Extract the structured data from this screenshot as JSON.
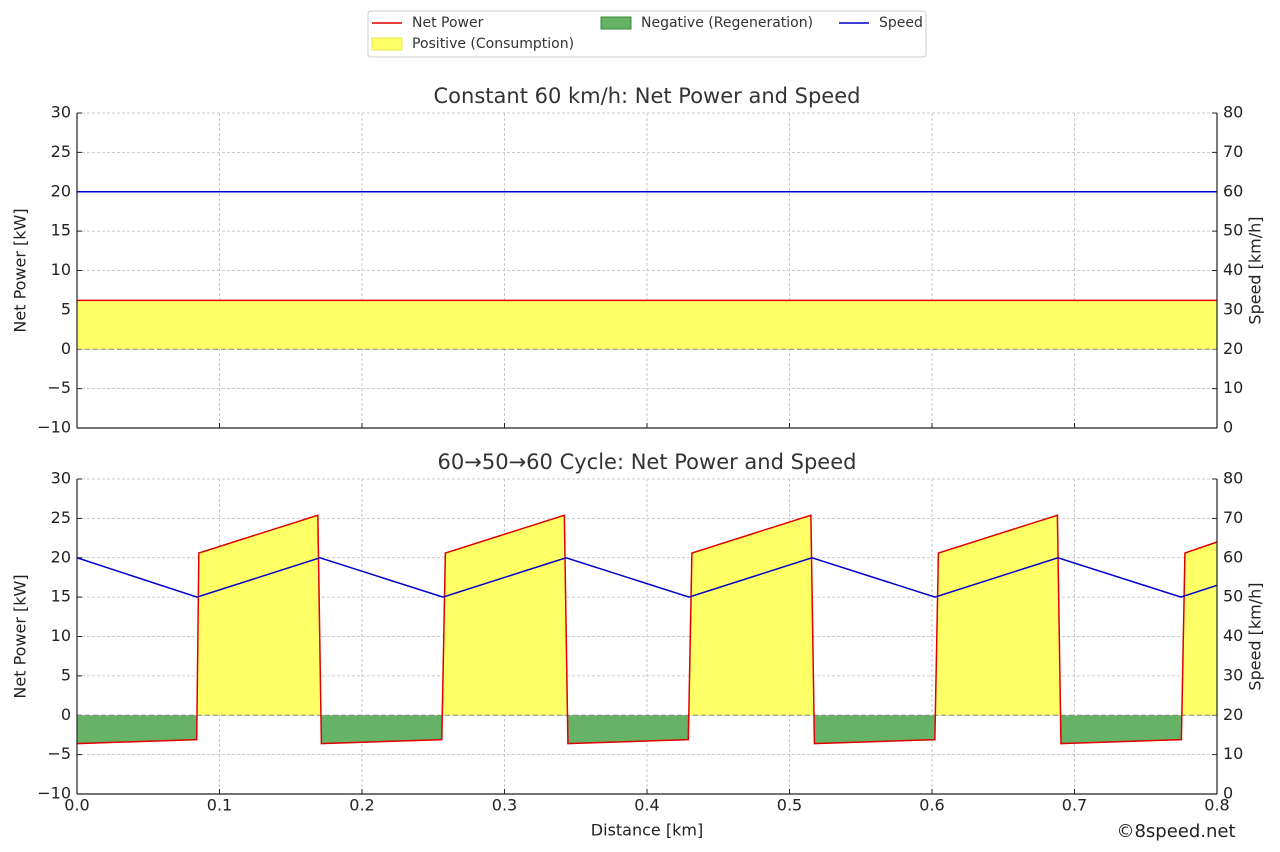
{
  "watermark": "©8speed.net",
  "chart_data": [
    {
      "type": "line",
      "title": "Constant 60 km/h: Net Power and Speed",
      "ylabel": "Net Power [kW]",
      "y2label": "Speed [km/h]",
      "xlim": [
        0,
        0.8
      ],
      "xticks": [
        0,
        0.1,
        0.2,
        0.3,
        0.4,
        0.5,
        0.6,
        0.7,
        0.8
      ],
      "xtick_labels": false,
      "ylim": [
        -10,
        30
      ],
      "yticks": [
        {
          "value": -10,
          "label": "−10"
        },
        {
          "value": -5,
          "label": "−5"
        },
        0,
        5,
        10,
        15,
        20,
        25,
        30
      ],
      "y2lim": [
        0,
        80
      ],
      "y2ticks": [
        0,
        10,
        20,
        30,
        40,
        50,
        60,
        70,
        80
      ],
      "grid": true,
      "zero_line": true,
      "fills": [
        {
          "name": "Positive (Consumption)",
          "color": "#ffff66",
          "series": 0
        },
        {
          "name": "Negative (Regeneration)",
          "color": "#66b266",
          "series": 0
        }
      ],
      "series": [
        {
          "name": "Net Power",
          "color": "#e00000",
          "x": [
            0,
            0.8
          ],
          "values": [
            6.2,
            6.2
          ]
        },
        {
          "name": "Speed",
          "color": "#0000cc",
          "axis": "y2",
          "x": [
            0,
            0.8
          ],
          "values": [
            60,
            60
          ]
        }
      ]
    },
    {
      "type": "line",
      "title": "60→50→60 Cycle: Net Power and Speed",
      "ylabel": "Net Power [kW]",
      "y2label": "Speed [km/h]",
      "xlabel": "Distance [km]",
      "xlim": [
        0,
        0.8
      ],
      "xticks": [
        {
          "value": 0,
          "label": "0.0"
        },
        0.1,
        0.2,
        0.3,
        0.4,
        0.5,
        0.6,
        0.7,
        0.8
      ],
      "xtick_labels": true,
      "ylim": [
        -10,
        30
      ],
      "yticks": [
        {
          "value": -10,
          "label": "−10"
        },
        {
          "value": -5,
          "label": "−5"
        },
        0,
        5,
        10,
        15,
        20,
        25,
        30
      ],
      "y2lim": [
        0,
        80
      ],
      "y2ticks": [
        0,
        10,
        20,
        30,
        40,
        50,
        60,
        70,
        80
      ],
      "grid": true,
      "zero_line": true,
      "fills": [
        {
          "color": "#ffff66",
          "series": 0
        },
        {
          "color": "#66b266",
          "series": 0
        }
      ],
      "series": [
        {
          "color": "#e00000",
          "x": [
            0,
            0.084,
            0.0855,
            0.169,
            0.1715,
            0.256,
            0.2585,
            0.342,
            0.3445,
            0.429,
            0.4315,
            0.515,
            0.5175,
            0.602,
            0.6045,
            0.688,
            0.6905,
            0.775,
            0.7775,
            0.8
          ],
          "values": [
            -3.6,
            -3.1,
            20.6,
            25.4,
            -3.6,
            -3.1,
            20.6,
            25.4,
            -3.6,
            -3.1,
            20.6,
            25.4,
            -3.6,
            -3.1,
            20.6,
            25.4,
            -3.6,
            -3.1,
            20.6,
            22.0
          ]
        },
        {
          "color": "#0000cc",
          "axis": "y2",
          "x": [
            0,
            0.0842,
            0.1705,
            0.2568,
            0.3432,
            0.4295,
            0.5158,
            0.6021,
            0.6884,
            0.7747,
            0.8
          ],
          "values": [
            60,
            50,
            60,
            50,
            60,
            50,
            60,
            50,
            60,
            50,
            53
          ]
        }
      ]
    }
  ]
}
